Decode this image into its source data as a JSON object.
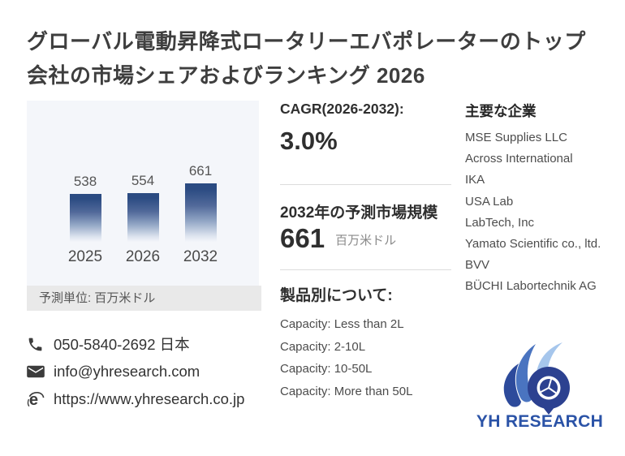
{
  "title": "グローバル電動昇降式ロータリーエバポレーターのトップ会社の市場シェアおよびランキング 2026",
  "chart_data": {
    "type": "bar",
    "categories": [
      "2025",
      "2026",
      "2032"
    ],
    "values": [
      538,
      554,
      661
    ],
    "title": "",
    "xlabel": "",
    "ylabel": "",
    "ylim": [
      0,
      700
    ],
    "grid": false,
    "legend": "none",
    "unit_note": "予測単位: 百万米ドル",
    "bar_gradient": [
      "#2b4b82",
      "#f4f6fa"
    ]
  },
  "metrics": {
    "cagr_label": "CAGR(2026-2032):",
    "cagr_value": "3.0%",
    "forecast_label": "2032年の予測市場規模",
    "forecast_value": "661",
    "forecast_unit": "百万米ドル"
  },
  "products": {
    "heading": "製品別について:",
    "items": [
      "Capacity: Less than 2L",
      "Capacity: 2-10L",
      "Capacity: 10-50L",
      "Capacity: More than 50L"
    ]
  },
  "companies": {
    "heading": "主要な企業",
    "items": [
      "MSE Supplies LLC",
      "Across International",
      "IKA",
      "USA Lab",
      "LabTech, Inc",
      "Yamato Scientific co., ltd.",
      "BVV",
      "BÜCHI Labortechnik AG"
    ]
  },
  "contact": {
    "phone": "050-5840-2692 日本",
    "email": "info@yhresearch.com",
    "website": "https://www.yhresearch.co.jp"
  },
  "logo": {
    "text": "YH RESEARCH"
  },
  "colors": {
    "title_text": "#3e3e3e",
    "panel_bg": "#f4f6fa",
    "caption_bg": "#e9e9e9",
    "bar_top": "#2b4b82",
    "divider": "#dcdcdc",
    "logo_blue": "#2b53a7",
    "logo_dark_petal": "#2d4a9b",
    "logo_mid_petal": "#4a74c0",
    "logo_light_petal": "#a6c6ec",
    "icon_gray": "#3c3c3c"
  }
}
